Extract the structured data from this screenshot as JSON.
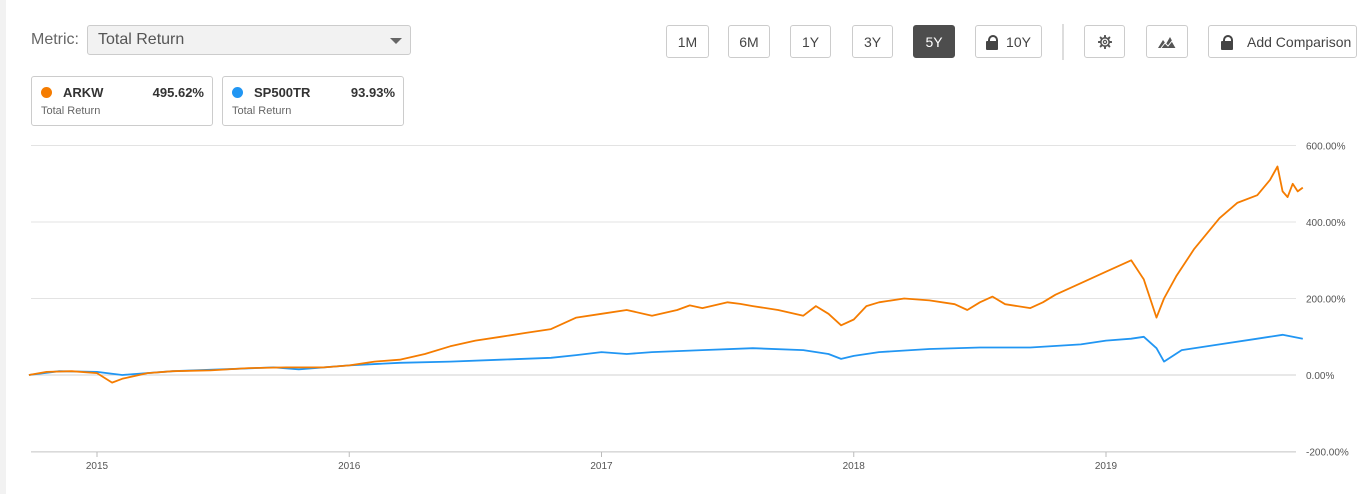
{
  "toolbar": {
    "metric_label": "Metric:",
    "metric_value": "Total Return",
    "ranges": [
      "1M",
      "6M",
      "1Y",
      "3Y",
      "5Y",
      "10Y"
    ],
    "active_range": "5Y",
    "add_comparison": "Add Comparison"
  },
  "legend": [
    {
      "symbol": "ARKW",
      "value": "495.62%",
      "subtitle": "Total Return",
      "color": "#f57c00"
    },
    {
      "symbol": "SP500TR",
      "value": "93.93%",
      "subtitle": "Total Return",
      "color": "#2196f3"
    }
  ],
  "chart_data": {
    "type": "line",
    "title": "",
    "xlabel": "",
    "ylabel": "",
    "x_ticks": [
      "2015",
      "2016",
      "2017",
      "2018",
      "2019"
    ],
    "y_ticks": [
      "600.00%",
      "400.00%",
      "200.00%",
      "0.00%",
      "-200.00%"
    ],
    "ylim": [
      -200,
      600
    ],
    "xlim": [
      2014.73,
      2019.78
    ],
    "grid": true,
    "series": [
      {
        "name": "ARKW",
        "color": "#f57c00",
        "x": [
          2014.73,
          2014.8,
          2014.9,
          2015.0,
          2015.06,
          2015.1,
          2015.2,
          2015.3,
          2015.45,
          2015.6,
          2015.75,
          2015.9,
          2016.0,
          2016.1,
          2016.2,
          2016.3,
          2016.4,
          2016.5,
          2016.6,
          2016.7,
          2016.8,
          2016.9,
          2017.0,
          2017.1,
          2017.2,
          2017.3,
          2017.35,
          2017.4,
          2017.5,
          2017.55,
          2017.6,
          2017.7,
          2017.8,
          2017.85,
          2017.9,
          2017.95,
          2018.0,
          2018.05,
          2018.1,
          2018.2,
          2018.3,
          2018.4,
          2018.45,
          2018.5,
          2018.55,
          2018.6,
          2018.7,
          2018.75,
          2018.8,
          2018.9,
          2019.0,
          2019.1,
          2019.15,
          2019.2,
          2019.23,
          2019.28,
          2019.35,
          2019.45,
          2019.52,
          2019.6,
          2019.65,
          2019.68,
          2019.7,
          2019.72,
          2019.74,
          2019.76,
          2019.78
        ],
        "values": [
          0,
          8,
          10,
          5,
          -20,
          -10,
          5,
          10,
          12,
          18,
          20,
          20,
          25,
          35,
          40,
          55,
          75,
          90,
          100,
          110,
          120,
          150,
          160,
          170,
          155,
          170,
          182,
          175,
          190,
          186,
          180,
          170,
          155,
          180,
          160,
          130,
          145,
          180,
          190,
          200,
          195,
          185,
          170,
          190,
          205,
          185,
          175,
          190,
          210,
          240,
          270,
          300,
          250,
          150,
          200,
          260,
          330,
          410,
          450,
          470,
          510,
          545,
          480,
          465,
          500,
          480,
          490
        ]
      },
      {
        "name": "SP500TR",
        "color": "#2196f3",
        "x": [
          2014.73,
          2014.85,
          2015.0,
          2015.1,
          2015.3,
          2015.5,
          2015.7,
          2015.8,
          2016.0,
          2016.2,
          2016.4,
          2016.6,
          2016.8,
          2016.9,
          2017.0,
          2017.1,
          2017.2,
          2017.4,
          2017.6,
          2017.8,
          2017.9,
          2017.95,
          2018.0,
          2018.1,
          2018.3,
          2018.5,
          2018.7,
          2018.9,
          2019.0,
          2019.1,
          2019.15,
          2019.2,
          2019.23,
          2019.3,
          2019.45,
          2019.6,
          2019.7,
          2019.74,
          2019.78
        ],
        "values": [
          0,
          10,
          8,
          0,
          10,
          15,
          20,
          15,
          25,
          32,
          35,
          40,
          45,
          52,
          60,
          55,
          60,
          65,
          70,
          65,
          55,
          42,
          50,
          60,
          68,
          72,
          72,
          80,
          90,
          95,
          100,
          70,
          35,
          65,
          80,
          95,
          105,
          100,
          95
        ]
      }
    ]
  }
}
